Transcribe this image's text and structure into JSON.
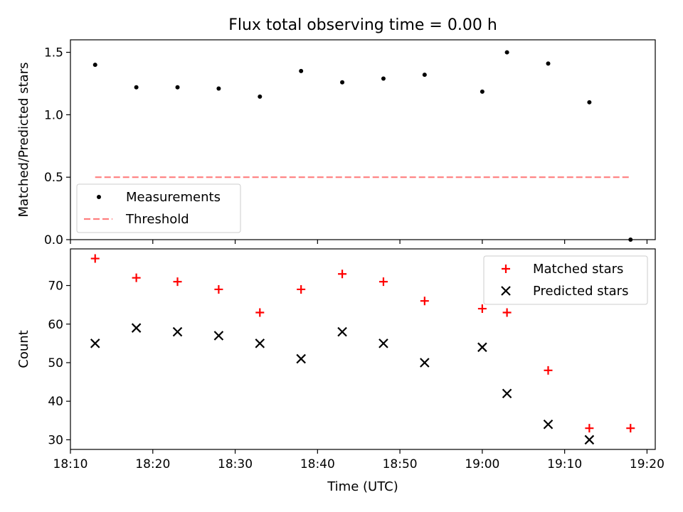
{
  "chart_data": {
    "type": "scatter",
    "title": "Flux total observing time = 0.00 h",
    "x_ticks": [
      "18:10",
      "18:20",
      "18:30",
      "18:40",
      "18:50",
      "19:00",
      "19:10",
      "19:20"
    ],
    "xlim": [
      "18:10",
      "19:21"
    ],
    "xlabel": "Time (UTC)",
    "grid": false,
    "panels": [
      {
        "ylabel": "Matched/Predicted stars",
        "ylim": [
          0,
          1.6
        ],
        "y_ticks": [
          "0.0",
          "0.5",
          "1.0",
          "1.5"
        ],
        "legend_position": "lower-left",
        "series": [
          {
            "name": "Measurements",
            "kind": "points",
            "color": "#000000",
            "points": [
              {
                "x": "18:13",
                "y": 1.4
              },
              {
                "x": "18:18",
                "y": 1.22
              },
              {
                "x": "18:23",
                "y": 1.22
              },
              {
                "x": "18:28",
                "y": 1.21
              },
              {
                "x": "18:33",
                "y": 1.145
              },
              {
                "x": "18:38",
                "y": 1.35
              },
              {
                "x": "18:43",
                "y": 1.26
              },
              {
                "x": "18:48",
                "y": 1.29
              },
              {
                "x": "18:53",
                "y": 1.32
              },
              {
                "x": "19:00",
                "y": 1.185
              },
              {
                "x": "19:03",
                "y": 1.5
              },
              {
                "x": "19:08",
                "y": 1.41
              },
              {
                "x": "19:13",
                "y": 1.1
              },
              {
                "x": "19:18",
                "y": 0.0
              }
            ]
          },
          {
            "name": "Threshold",
            "kind": "dashed-line",
            "color": "#ff7f7f",
            "points": [
              {
                "x": "18:13",
                "y": 0.5
              },
              {
                "x": "19:18",
                "y": 0.5
              }
            ]
          }
        ]
      },
      {
        "ylabel": "Count",
        "ylim": [
          27.5,
          79.5
        ],
        "y_ticks": [
          "30",
          "40",
          "50",
          "60",
          "70"
        ],
        "legend_position": "upper-right",
        "series": [
          {
            "name": "Matched stars",
            "kind": "plus",
            "color": "#ff0000",
            "points": [
              {
                "x": "18:13",
                "y": 77
              },
              {
                "x": "18:18",
                "y": 72
              },
              {
                "x": "18:23",
                "y": 71
              },
              {
                "x": "18:28",
                "y": 69
              },
              {
                "x": "18:33",
                "y": 63
              },
              {
                "x": "18:38",
                "y": 69
              },
              {
                "x": "18:43",
                "y": 73
              },
              {
                "x": "18:48",
                "y": 71
              },
              {
                "x": "18:53",
                "y": 66
              },
              {
                "x": "19:00",
                "y": 64
              },
              {
                "x": "19:03",
                "y": 63
              },
              {
                "x": "19:08",
                "y": 48
              },
              {
                "x": "19:13",
                "y": 33
              },
              {
                "x": "19:18",
                "y": 33
              }
            ]
          },
          {
            "name": "Predicted stars",
            "kind": "x",
            "color": "#000000",
            "points": [
              {
                "x": "18:13",
                "y": 55
              },
              {
                "x": "18:18",
                "y": 59
              },
              {
                "x": "18:23",
                "y": 58
              },
              {
                "x": "18:28",
                "y": 57
              },
              {
                "x": "18:33",
                "y": 55
              },
              {
                "x": "18:38",
                "y": 51
              },
              {
                "x": "18:43",
                "y": 58
              },
              {
                "x": "18:48",
                "y": 55
              },
              {
                "x": "18:53",
                "y": 50
              },
              {
                "x": "19:00",
                "y": 54
              },
              {
                "x": "19:03",
                "y": 42
              },
              {
                "x": "19:08",
                "y": 34
              },
              {
                "x": "19:13",
                "y": 30
              }
            ]
          }
        ]
      }
    ]
  }
}
